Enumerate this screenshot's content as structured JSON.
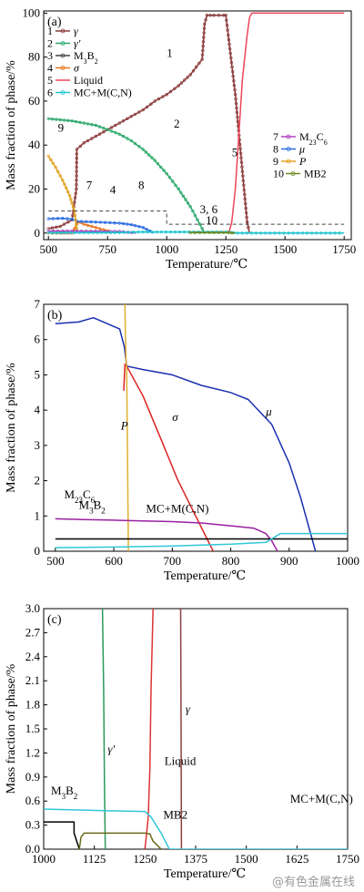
{
  "figure": {
    "watermark": "@有色金属在线"
  },
  "chart_data": [
    {
      "type": "line",
      "panel_label": "(a)",
      "xlabel": "Temperature/℃",
      "ylabel": "Mass fraction of phase/%",
      "xlim": [
        480,
        1780
      ],
      "ylim": [
        -3,
        101
      ],
      "xticks": [
        500,
        750,
        1000,
        1250,
        1500,
        1750
      ],
      "yticks": [
        0,
        20,
        40,
        60,
        80,
        100
      ],
      "legend_left": [
        {
          "num": "1",
          "name": "γ",
          "color": "#8b3a3a",
          "marker": "circle"
        },
        {
          "num": "2",
          "name": "γ′",
          "color": "#2aa86b",
          "marker": "circle"
        },
        {
          "num": "3",
          "name": "M3B2",
          "color": "#444444",
          "marker": "circle"
        },
        {
          "num": "4",
          "name": "σ",
          "color": "#e8711a",
          "marker": "circle"
        },
        {
          "num": "5",
          "name": "Liquid",
          "color": "#ee4455",
          "marker": "none"
        },
        {
          "num": "6",
          "name": "MC+M(C,N)",
          "color": "#20c4d0",
          "marker": "circle"
        }
      ],
      "legend_right": [
        {
          "num": "7",
          "name": "M23C6",
          "color": "#b040c0",
          "marker": "circle"
        },
        {
          "num": "8",
          "name": "μ",
          "color": "#2a6be0",
          "marker": "circle"
        },
        {
          "num": "9",
          "name": "P",
          "color": "#e0a020",
          "marker": "circle"
        },
        {
          "num": "10",
          "name": "MB2",
          "color": "#6a8a20",
          "marker": "circle"
        }
      ],
      "series": [
        {
          "num": "1",
          "color": "#8b3a3a",
          "markers": true,
          "x": [
            500,
            550,
            600,
            618,
            620,
            650,
            700,
            750,
            800,
            850,
            900,
            950,
            1000,
            1050,
            1100,
            1150,
            1160,
            1170,
            1200,
            1240,
            1250,
            1260,
            1290,
            1320,
            1340,
            1350
          ],
          "y": [
            2,
            3,
            6,
            20,
            38,
            41,
            44,
            47,
            50,
            53,
            56,
            60,
            63,
            67,
            72,
            79,
            95,
            99,
            99,
            99,
            99,
            90,
            63,
            28,
            5,
            0
          ]
        },
        {
          "num": "2",
          "color": "#2aa86b",
          "markers": true,
          "x": [
            500,
            550,
            600,
            650,
            700,
            750,
            800,
            850,
            900,
            950,
            1000,
            1050,
            1100,
            1130,
            1150,
            1160
          ],
          "y": [
            52,
            51.5,
            51,
            50,
            49,
            47,
            45,
            42,
            38,
            33,
            27,
            20,
            12,
            6,
            2,
            0
          ]
        },
        {
          "num": "5",
          "color": "#ee4455",
          "markers": false,
          "x": [
            1250,
            1265,
            1275,
            1290,
            1305,
            1320,
            1340,
            1350,
            1360,
            1370,
            1750
          ],
          "y": [
            0,
            1,
            5,
            20,
            45,
            70,
            90,
            98,
            100,
            100,
            100
          ]
        },
        {
          "num": "4",
          "color": "#e8711a",
          "markers": true,
          "x": [
            500,
            550,
            600,
            620,
            625,
            650,
            700,
            750,
            770
          ],
          "y": [
            0,
            0,
            0,
            4,
            5,
            4,
            2.5,
            1,
            0
          ]
        },
        {
          "num": "8",
          "color": "#2a6be0",
          "markers": true,
          "x": [
            500,
            560,
            600,
            620,
            700,
            800,
            850,
            900,
            945
          ],
          "y": [
            6.5,
            6.7,
            6.3,
            5.3,
            5,
            4.5,
            3.8,
            2.5,
            0
          ]
        },
        {
          "num": "9",
          "color": "#e0a020",
          "markers": true,
          "x": [
            500,
            530,
            560,
            590,
            610,
            622
          ],
          "y": [
            35,
            30,
            24,
            17,
            10,
            0
          ]
        },
        {
          "num": "7",
          "color": "#b040c0",
          "markers": true,
          "x": [
            500,
            600,
            700,
            800,
            870
          ],
          "y": [
            0.9,
            0.88,
            0.8,
            0.7,
            0
          ]
        },
        {
          "num": "6",
          "color": "#20c4d0",
          "markers": true,
          "x": [
            500,
            800,
            880,
            1250,
            1300,
            1750
          ],
          "y": [
            0.1,
            0.2,
            0.5,
            0.5,
            0,
            0
          ]
        },
        {
          "num": "10",
          "color": "#6a8a20",
          "markers": true,
          "x": [
            1100,
            1200,
            1260,
            1290
          ],
          "y": [
            0.2,
            0.2,
            0.2,
            0
          ]
        },
        {
          "num": "3",
          "color": "#444444",
          "dashed": true,
          "markers": false,
          "x": [
            500,
            1000,
            1000,
            1750
          ],
          "y": [
            10,
            10,
            4,
            4
          ]
        }
      ],
      "annotations": [
        {
          "text": "1",
          "x": 1000,
          "y": 80
        },
        {
          "text": "2",
          "x": 1030,
          "y": 48
        },
        {
          "text": "5",
          "x": 1275,
          "y": 35
        },
        {
          "text": "9",
          "x": 540,
          "y": 46
        },
        {
          "text": "7",
          "x": 660,
          "y": 20
        },
        {
          "text": "4",
          "x": 760,
          "y": 18
        },
        {
          "text": "8",
          "x": 880,
          "y": 20
        },
        {
          "text": "3, 6",
          "x": 1140,
          "y": 9
        },
        {
          "text": "10",
          "x": 1165,
          "y": 4
        }
      ]
    },
    {
      "type": "line",
      "panel_label": "(b)",
      "xlabel": "Temperature/℃",
      "ylabel": "Mass fraction of phase/%",
      "xlim": [
        480,
        1000
      ],
      "ylim": [
        0,
        7
      ],
      "xticks": [
        500,
        600,
        700,
        800,
        900,
        1000
      ],
      "yticks": [
        0,
        1,
        2,
        3,
        4,
        5,
        6,
        7
      ],
      "series": [
        {
          "name": "μ",
          "color": "#1a2fb0",
          "x": [
            500,
            540,
            565,
            610,
            618,
            622,
            650,
            700,
            750,
            800,
            830,
            870,
            900,
            920,
            945
          ],
          "y": [
            6.45,
            6.5,
            6.62,
            6.3,
            5.8,
            5.25,
            5.15,
            5.0,
            4.7,
            4.5,
            4.3,
            3.6,
            2.5,
            1.5,
            0
          ]
        },
        {
          "name": "σ",
          "color": "#dd2222",
          "x": [
            617,
            619,
            622,
            650,
            680,
            710,
            740,
            770
          ],
          "y": [
            4.55,
            5.3,
            5.25,
            4.4,
            3.2,
            2.0,
            1.0,
            0
          ]
        },
        {
          "name": "P",
          "color": "#e0b030",
          "x": [
            619,
            620,
            621,
            622,
            625
          ],
          "y": [
            7,
            6.0,
            5.3,
            5.2,
            0
          ]
        },
        {
          "name": "M23C6",
          "color": "#9a20a0",
          "x": [
            500,
            550,
            600,
            650,
            700,
            750,
            800,
            840,
            860,
            870,
            880
          ],
          "y": [
            0.92,
            0.9,
            0.88,
            0.86,
            0.84,
            0.8,
            0.72,
            0.65,
            0.5,
            0.3,
            0
          ]
        },
        {
          "name": "M3B2",
          "color": "#000000",
          "x": [
            500,
            1000
          ],
          "y": [
            0.35,
            0.35
          ]
        },
        {
          "name": "MC+M(C,N)",
          "color": "#30c8d8",
          "x": [
            500,
            600,
            700,
            800,
            860,
            885,
            1000
          ],
          "y": [
            0.1,
            0.12,
            0.15,
            0.2,
            0.25,
            0.5,
            0.5
          ]
        }
      ],
      "annotations": [
        {
          "text": "μ",
          "x": 860,
          "y": 3.85
        },
        {
          "text": "σ",
          "x": 700,
          "y": 3.7
        },
        {
          "text": "P",
          "x": 612,
          "y": 3.45
        },
        {
          "text": "M23C6",
          "x": 515,
          "y": 1.5
        },
        {
          "text": "M3B2",
          "x": 540,
          "y": 1.2
        },
        {
          "text": "MC+M(C,N)",
          "x": 655,
          "y": 1.1
        }
      ]
    },
    {
      "type": "line",
      "panel_label": "(c)",
      "xlabel": "Temperature/℃",
      "ylabel": "Mass fraction of phase/%",
      "xlim": [
        1000,
        1750
      ],
      "ylim": [
        0,
        3
      ],
      "xticks": [
        1000,
        1125,
        1250,
        1375,
        1500,
        1625,
        1750
      ],
      "yticks": [
        0,
        0.3,
        0.6,
        0.9,
        1.2,
        1.5,
        1.8,
        2.1,
        2.4,
        2.7,
        3.0
      ],
      "series": [
        {
          "name": "γ′",
          "color": "#2a9a5a",
          "x": [
            1145,
            1148,
            1150,
            1152
          ],
          "y": [
            3,
            2.0,
            0.8,
            0
          ]
        },
        {
          "name": "Liquid",
          "color": "#dd3333",
          "x": [
            1250,
            1258,
            1262,
            1265,
            1270
          ],
          "y": [
            0,
            0.4,
            1.0,
            2.0,
            3
          ]
        },
        {
          "name": "γ",
          "color": "#8b4040",
          "x": [
            1338,
            1339,
            1340
          ],
          "y": [
            3,
            1.5,
            0
          ]
        },
        {
          "name": "M3B2",
          "color": "#000000",
          "x": [
            1000,
            1075,
            1075,
            1088
          ],
          "y": [
            0.34,
            0.34,
            0.2,
            0
          ]
        },
        {
          "name": "MB2",
          "color": "#6a6a18",
          "x": [
            1088,
            1092,
            1100,
            1150,
            1250,
            1262,
            1270,
            1290
          ],
          "y": [
            0,
            0.15,
            0.2,
            0.2,
            0.2,
            0.19,
            0.1,
            0
          ]
        },
        {
          "name": "MC+M(C,N)",
          "color": "#30c8d8",
          "x": [
            1000,
            1150,
            1250,
            1265,
            1290,
            1310,
            1750
          ],
          "y": [
            0.5,
            0.48,
            0.47,
            0.4,
            0.2,
            0,
            0
          ]
        }
      ],
      "annotations": [
        {
          "text": "γ′",
          "x": 1158,
          "y": 1.2
        },
        {
          "text": "γ",
          "x": 1350,
          "y": 1.7
        },
        {
          "text": "Liquid",
          "x": 1298,
          "y": 1.05
        },
        {
          "text": "M3B2",
          "x": 1018,
          "y": 0.68
        },
        {
          "text": "MB2",
          "x": 1295,
          "y": 0.38
        },
        {
          "text": "MC+M(C,N)",
          "x": 1608,
          "y": 0.58
        }
      ]
    }
  ]
}
